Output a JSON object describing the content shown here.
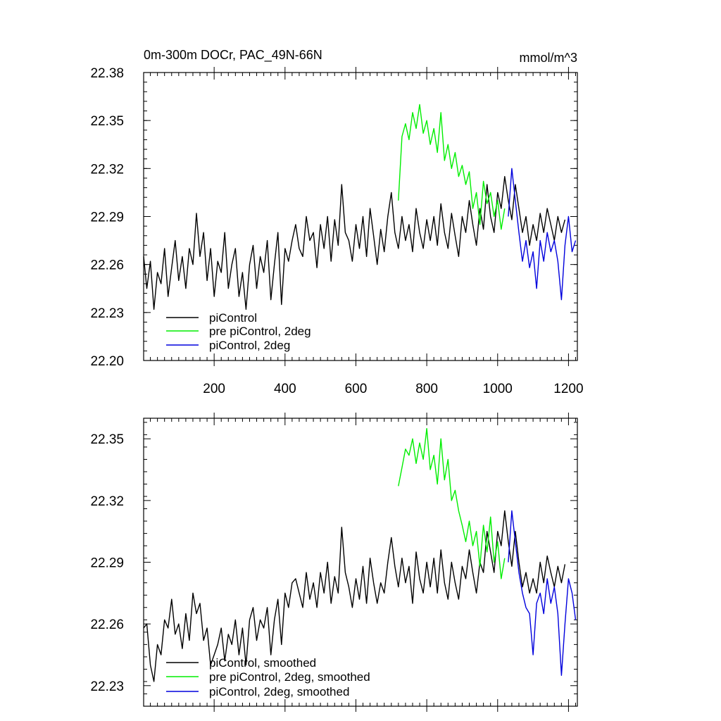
{
  "colors": {
    "piControl": "#000000",
    "pre_piControl": "#00ee00",
    "piControl_2deg": "#0000dd"
  },
  "chart_data": [
    {
      "type": "line",
      "title": "0m-300m DOCr, PAC_49N-66N",
      "units": "mmol/m^3",
      "xlim": [
        1,
        1225
      ],
      "ylim": [
        22.2,
        22.38
      ],
      "xticks": [
        200,
        400,
        600,
        800,
        1000,
        1200
      ],
      "xtick_labels": [
        "200",
        "400",
        "600",
        "800",
        "1000",
        "1200"
      ],
      "yticks": [
        22.2,
        22.23,
        22.26,
        22.29,
        22.32,
        22.35,
        22.38
      ],
      "ytick_labels": [
        "22.20",
        "22.23",
        "22.26",
        "22.29",
        "22.32",
        "22.35",
        "22.38"
      ],
      "grid": false,
      "legend_position": "bottom-left",
      "series": [
        {
          "name": "piControl",
          "color": "#000000",
          "x": [
            1,
            10,
            20,
            30,
            40,
            50,
            60,
            70,
            80,
            90,
            100,
            110,
            120,
            130,
            140,
            150,
            160,
            170,
            180,
            190,
            200,
            210,
            220,
            230,
            240,
            250,
            260,
            270,
            280,
            290,
            300,
            310,
            320,
            330,
            340,
            350,
            360,
            370,
            380,
            390,
            400,
            410,
            420,
            430,
            440,
            450,
            460,
            470,
            480,
            490,
            500,
            510,
            520,
            530,
            540,
            550,
            560,
            570,
            580,
            590,
            600,
            610,
            620,
            630,
            640,
            650,
            660,
            670,
            680,
            690,
            700,
            710,
            720,
            730,
            740,
            750,
            760,
            770,
            780,
            790,
            800,
            810,
            820,
            830,
            840,
            850,
            860,
            870,
            880,
            890,
            900,
            910,
            920,
            930,
            940,
            950,
            960,
            970,
            980,
            990,
            1000,
            1010,
            1020,
            1030,
            1040,
            1050,
            1060,
            1070,
            1080,
            1090,
            1100,
            1110,
            1120,
            1130,
            1140,
            1150,
            1160,
            1170,
            1180,
            1190
          ],
          "y": [
            22.265,
            22.245,
            22.262,
            22.232,
            22.255,
            22.248,
            22.27,
            22.24,
            22.258,
            22.275,
            22.25,
            22.265,
            22.245,
            22.27,
            22.26,
            22.292,
            22.265,
            22.28,
            22.25,
            22.27,
            22.24,
            22.262,
            22.255,
            22.28,
            22.245,
            22.26,
            22.27,
            22.24,
            22.255,
            22.232,
            22.26,
            22.272,
            22.245,
            22.265,
            22.255,
            22.275,
            22.238,
            22.26,
            22.28,
            22.235,
            22.27,
            22.262,
            22.275,
            22.285,
            22.27,
            22.265,
            22.29,
            22.275,
            22.28,
            22.258,
            22.285,
            22.27,
            22.29,
            22.262,
            22.288,
            22.272,
            22.31,
            22.28,
            22.275,
            22.262,
            22.285,
            22.27,
            22.29,
            22.265,
            22.295,
            22.278,
            22.26,
            22.282,
            22.268,
            22.29,
            22.305,
            22.28,
            22.27,
            22.29,
            22.275,
            22.285,
            22.268,
            22.295,
            22.28,
            22.27,
            22.288,
            22.275,
            22.29,
            22.272,
            22.298,
            22.28,
            22.27,
            22.292,
            22.278,
            22.265,
            22.29,
            22.28,
            22.3,
            22.285,
            22.272,
            22.295,
            22.282,
            22.31,
            22.29,
            22.28,
            22.305,
            22.295,
            22.315,
            22.3,
            22.288,
            22.31,
            22.295,
            22.28,
            22.29,
            22.272,
            22.285,
            22.275,
            22.292,
            22.28,
            22.295,
            22.285,
            22.275,
            22.29,
            22.28,
            22.288
          ]
        },
        {
          "name": "pre piControl, 2deg",
          "color": "#00ee00",
          "x": [
            720,
            730,
            740,
            750,
            760,
            770,
            780,
            790,
            800,
            810,
            820,
            830,
            840,
            850,
            860,
            870,
            880,
            890,
            900,
            910,
            920,
            930,
            940,
            950,
            960,
            970,
            980,
            990,
            1000,
            1010,
            1020
          ],
          "y": [
            22.3,
            22.34,
            22.348,
            22.338,
            22.355,
            22.345,
            22.36,
            22.342,
            22.35,
            22.335,
            22.345,
            22.33,
            22.355,
            22.325,
            22.335,
            22.32,
            22.33,
            22.315,
            22.322,
            22.31,
            22.318,
            22.295,
            22.305,
            22.285,
            22.312,
            22.298,
            22.305,
            22.29,
            22.3,
            22.282,
            22.295
          ]
        },
        {
          "name": "piControl, 2deg",
          "color": "#0000dd",
          "x": [
            1030,
            1040,
            1050,
            1060,
            1070,
            1080,
            1090,
            1100,
            1110,
            1120,
            1130,
            1140,
            1150,
            1160,
            1170,
            1180,
            1190,
            1200,
            1210,
            1220
          ],
          "y": [
            22.29,
            22.32,
            22.3,
            22.28,
            22.262,
            22.275,
            22.258,
            22.268,
            22.245,
            22.275,
            22.262,
            22.28,
            22.268,
            22.275,
            22.262,
            22.238,
            22.272,
            22.29,
            22.268,
            22.275
          ]
        }
      ]
    },
    {
      "type": "line",
      "xlim": [
        1,
        1225
      ],
      "ylim": [
        22.22,
        22.36
      ],
      "xticks": [
        200,
        400,
        600,
        800,
        1000,
        1200
      ],
      "yticks": [
        22.23,
        22.26,
        22.29,
        22.32,
        22.35
      ],
      "ytick_labels": [
        "22.23",
        "22.26",
        "22.29",
        "22.32",
        "22.35"
      ],
      "grid": false,
      "legend_position": "bottom-left",
      "series": [
        {
          "name": "piControl, smoothed",
          "color": "#000000",
          "x": [
            1,
            10,
            20,
            30,
            40,
            50,
            60,
            70,
            80,
            90,
            100,
            110,
            120,
            130,
            140,
            150,
            160,
            170,
            180,
            190,
            200,
            210,
            220,
            230,
            240,
            250,
            260,
            270,
            280,
            290,
            300,
            310,
            320,
            330,
            340,
            350,
            360,
            370,
            380,
            390,
            400,
            410,
            420,
            430,
            440,
            450,
            460,
            470,
            480,
            490,
            500,
            510,
            520,
            530,
            540,
            550,
            560,
            570,
            580,
            590,
            600,
            610,
            620,
            630,
            640,
            650,
            660,
            670,
            680,
            690,
            700,
            710,
            720,
            730,
            740,
            750,
            760,
            770,
            780,
            790,
            800,
            810,
            820,
            830,
            840,
            850,
            860,
            870,
            880,
            890,
            900,
            910,
            920,
            930,
            940,
            950,
            960,
            970,
            980,
            990,
            1000,
            1010,
            1020,
            1030,
            1040,
            1050,
            1060,
            1070,
            1080,
            1090,
            1100,
            1110,
            1120,
            1130,
            1140,
            1150,
            1160,
            1170,
            1180,
            1190
          ],
          "y": [
            22.258,
            22.26,
            22.24,
            22.232,
            22.25,
            22.245,
            22.262,
            22.258,
            22.272,
            22.255,
            22.26,
            22.248,
            22.265,
            22.252,
            22.275,
            22.265,
            22.27,
            22.252,
            22.258,
            22.24,
            22.245,
            22.25,
            22.258,
            22.242,
            22.255,
            22.25,
            22.262,
            22.245,
            22.258,
            22.24,
            22.262,
            22.268,
            22.252,
            22.262,
            22.258,
            22.268,
            22.245,
            22.262,
            22.272,
            22.25,
            22.275,
            22.268,
            22.28,
            22.282,
            22.275,
            22.268,
            22.285,
            22.272,
            22.28,
            22.268,
            22.285,
            22.275,
            22.29,
            22.27,
            22.283,
            22.275,
            22.307,
            22.285,
            22.278,
            22.268,
            22.282,
            22.272,
            22.288,
            22.27,
            22.292,
            22.28,
            22.27,
            22.28,
            22.275,
            22.29,
            22.302,
            22.288,
            22.278,
            22.292,
            22.28,
            22.288,
            22.27,
            22.295,
            22.282,
            22.275,
            22.29,
            22.278,
            22.292,
            22.275,
            22.296,
            22.28,
            22.272,
            22.29,
            22.28,
            22.272,
            22.288,
            22.282,
            22.296,
            22.285,
            22.275,
            22.29,
            22.285,
            22.305,
            22.295,
            22.285,
            22.305,
            22.298,
            22.315,
            22.3,
            22.288,
            22.305,
            22.29,
            22.278,
            22.285,
            22.275,
            22.282,
            22.275,
            22.29,
            22.28,
            22.293,
            22.285,
            22.278,
            22.288,
            22.28,
            22.289
          ]
        },
        {
          "name": "pre piControl, 2deg, smoothed",
          "color": "#00ee00",
          "x": [
            720,
            730,
            740,
            750,
            760,
            770,
            780,
            790,
            800,
            810,
            820,
            830,
            840,
            850,
            860,
            870,
            880,
            890,
            900,
            910,
            920,
            930,
            940,
            950,
            960,
            970,
            980,
            990,
            1000,
            1010,
            1020
          ],
          "y": [
            22.327,
            22.336,
            22.345,
            22.342,
            22.35,
            22.338,
            22.348,
            22.34,
            22.355,
            22.335,
            22.342,
            22.328,
            22.35,
            22.33,
            22.34,
            22.32,
            22.325,
            22.315,
            22.308,
            22.3,
            22.31,
            22.298,
            22.305,
            22.288,
            22.308,
            22.295,
            22.312,
            22.29,
            22.3,
            22.282,
            22.292
          ]
        },
        {
          "name": "piControl, 2deg, smoothed",
          "color": "#0000dd",
          "x": [
            1030,
            1040,
            1050,
            1060,
            1070,
            1080,
            1090,
            1100,
            1110,
            1120,
            1130,
            1140,
            1150,
            1160,
            1170,
            1180,
            1190,
            1200,
            1210,
            1220
          ],
          "y": [
            22.29,
            22.315,
            22.3,
            22.285,
            22.275,
            22.268,
            22.265,
            22.245,
            22.27,
            22.275,
            22.265,
            22.282,
            22.27,
            22.278,
            22.265,
            22.235,
            22.26,
            22.282,
            22.275,
            22.262
          ]
        }
      ]
    }
  ]
}
